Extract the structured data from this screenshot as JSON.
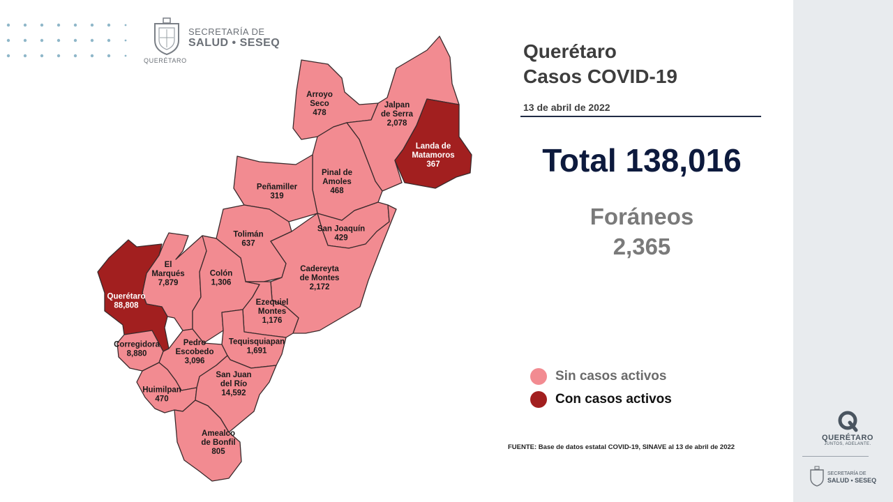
{
  "header": {
    "secretaria_top": "SECRETARÍA DE",
    "secretaria_bottom": "SALUD • SESEQ",
    "queretaro_small": "QUERÉTARO"
  },
  "title": {
    "line1": "Querétaro",
    "line2": "Casos COVID-19",
    "date": "13 de abril de 2022"
  },
  "total": "Total 138,016",
  "foraneos": {
    "label": "Foráneos",
    "value": "2,365"
  },
  "legend": [
    {
      "label": "Sin casos activos",
      "color": "#f28b91",
      "text_color": "#6b6b6b"
    },
    {
      "label": "Con casos activos",
      "color": "#a21f1f",
      "text_color": "#111111"
    }
  ],
  "source": "FUENTE: Base de datos estatal  COVID-19,  SINAVE  al 13 de abril de 2022",
  "colors": {
    "sin_casos": "#f28b91",
    "con_casos": "#a21f1f",
    "border": "#3a2a2c",
    "navy": "#0d1a3d"
  },
  "municipalities": [
    {
      "id": "arroyo-seco",
      "name_lines": [
        "Arroyo",
        "Seco"
      ],
      "cases": "478",
      "status": "sin"
    },
    {
      "id": "jalpan-de-serra",
      "name_lines": [
        "Jalpan",
        "de Serra"
      ],
      "cases": "2,078",
      "status": "sin"
    },
    {
      "id": "landa-de-matamoros",
      "name_lines": [
        "Landa de",
        "Matamoros"
      ],
      "cases": "367",
      "status": "con"
    },
    {
      "id": "pinal-de-amoles",
      "name_lines": [
        "Pinal de",
        "Amoles"
      ],
      "cases": "468",
      "status": "sin"
    },
    {
      "id": "penamiller",
      "name_lines": [
        "Peñamiller"
      ],
      "cases": "319",
      "status": "sin"
    },
    {
      "id": "san-joaquin",
      "name_lines": [
        "San Joaquín"
      ],
      "cases": "429",
      "status": "sin"
    },
    {
      "id": "toliman",
      "name_lines": [
        "Tolimán"
      ],
      "cases": "637",
      "status": "sin"
    },
    {
      "id": "cadereyta-de-montes",
      "name_lines": [
        "Cadereyta",
        "de Montes"
      ],
      "cases": "2,172",
      "status": "sin"
    },
    {
      "id": "el-marques",
      "name_lines": [
        "El",
        "Marqués"
      ],
      "cases": "7,879",
      "status": "sin"
    },
    {
      "id": "colon",
      "name_lines": [
        "Colón"
      ],
      "cases": "1,306",
      "status": "sin"
    },
    {
      "id": "queretaro",
      "name_lines": [
        "Querétaro"
      ],
      "cases": "88,808",
      "status": "con"
    },
    {
      "id": "ezequiel-montes",
      "name_lines": [
        "Ezequiel",
        "Montes"
      ],
      "cases": "1,176",
      "status": "sin"
    },
    {
      "id": "corregidora",
      "name_lines": [
        "Corregidora"
      ],
      "cases": "8,880",
      "status": "sin"
    },
    {
      "id": "pedro-escobedo",
      "name_lines": [
        "Pedro",
        "Escobedo"
      ],
      "cases": "3,096",
      "status": "sin"
    },
    {
      "id": "tequisquiapan",
      "name_lines": [
        "Tequisquiapan"
      ],
      "cases": "1,691",
      "status": "sin"
    },
    {
      "id": "huimilpan",
      "name_lines": [
        "Huimilpan"
      ],
      "cases": "470",
      "status": "sin"
    },
    {
      "id": "san-juan-del-rio",
      "name_lines": [
        "San Juan",
        "del Río"
      ],
      "cases": "14,592",
      "status": "sin"
    },
    {
      "id": "amealco-de-bonfil",
      "name_lines": [
        "Amealco",
        "de Bonfil"
      ],
      "cases": "805",
      "status": "sin"
    }
  ],
  "brand": {
    "q_word": "QUERÉTARO",
    "q_tagline": "JUNTOS, ADELANTE.",
    "sec_top": "SECRETARÍA DE",
    "sec_bottom": "SALUD • SESEQ"
  }
}
